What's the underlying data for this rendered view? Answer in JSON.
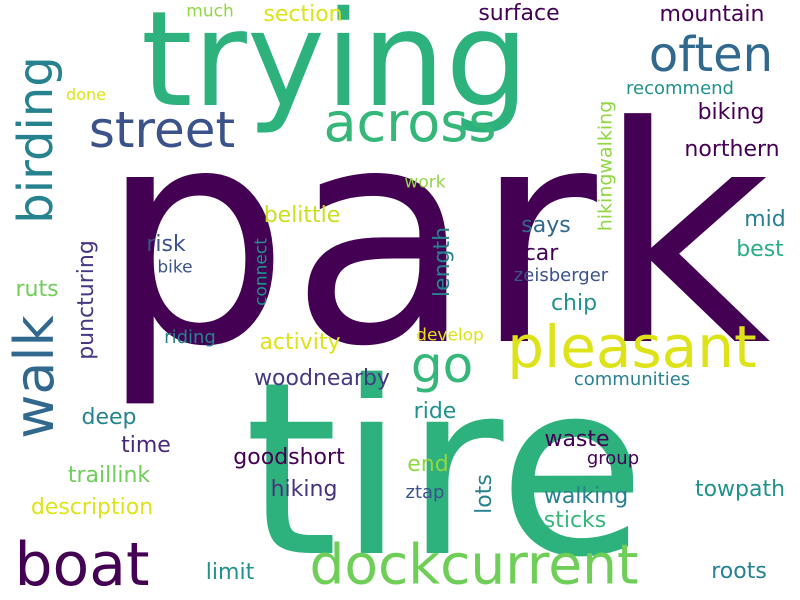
{
  "words": [
    {
      "id": "park",
      "text": "park",
      "color": "#440154"
    },
    {
      "id": "tire",
      "text": "tire",
      "color": "#2db27d"
    },
    {
      "id": "trying",
      "text": "trying",
      "color": "#2db27d"
    },
    {
      "id": "often",
      "text": "often",
      "color": "#31688e"
    },
    {
      "id": "street",
      "text": "street",
      "color": "#3b528b"
    },
    {
      "id": "across",
      "text": "across",
      "color": "#35b779"
    },
    {
      "id": "birding",
      "text": "birding",
      "color": "#26828e"
    },
    {
      "id": "pleasant",
      "text": "pleasant",
      "color": "#dde318"
    },
    {
      "id": "walk",
      "text": "walk",
      "color": "#31688e"
    },
    {
      "id": "go",
      "text": "go",
      "color": "#35b779"
    },
    {
      "id": "boat",
      "text": "boat",
      "color": "#440154"
    },
    {
      "id": "dockcurrent",
      "text": "dockcurrent",
      "color": "#6ece58"
    },
    {
      "id": "section",
      "text": "section",
      "color": "#dde318"
    },
    {
      "id": "much",
      "text": "much",
      "color": "#90d743"
    },
    {
      "id": "surface",
      "text": "surface",
      "color": "#440154"
    },
    {
      "id": "mountain",
      "text": "mountain",
      "color": "#440154"
    },
    {
      "id": "hikingwalking",
      "text": "hikingwalking",
      "color": "#90d743"
    },
    {
      "id": "recommend",
      "text": "recommend",
      "color": "#21918c"
    },
    {
      "id": "done",
      "text": "done",
      "color": "#dde318"
    },
    {
      "id": "biking",
      "text": "biking",
      "color": "#440154"
    },
    {
      "id": "northern",
      "text": "northern",
      "color": "#440154"
    },
    {
      "id": "work",
      "text": "work",
      "color": "#90d743"
    },
    {
      "id": "belittle",
      "text": "belittle",
      "color": "#dde318"
    },
    {
      "id": "mid",
      "text": "mid",
      "color": "#26828e"
    },
    {
      "id": "best",
      "text": "best",
      "color": "#29af7f"
    },
    {
      "id": "says",
      "text": "says",
      "color": "#31688e"
    },
    {
      "id": "car",
      "text": "car",
      "color": "#440154"
    },
    {
      "id": "risk",
      "text": "risk",
      "color": "#3b528b"
    },
    {
      "id": "bike",
      "text": "bike",
      "color": "#3b528b"
    },
    {
      "id": "connect",
      "text": "connect",
      "color": "#21918c"
    },
    {
      "id": "length",
      "text": "length",
      "color": "#26828e"
    },
    {
      "id": "zeisberger",
      "text": "zeisberger",
      "color": "#3b528b"
    },
    {
      "id": "ruts",
      "text": "ruts",
      "color": "#6ece58"
    },
    {
      "id": "puncturing",
      "text": "puncturing",
      "color": "#443983"
    },
    {
      "id": "chip",
      "text": "chip",
      "color": "#21918c"
    },
    {
      "id": "riding",
      "text": "riding",
      "color": "#26828e"
    },
    {
      "id": "activity",
      "text": "activity",
      "color": "#dde318"
    },
    {
      "id": "develop",
      "text": "develop",
      "color": "#dde318"
    },
    {
      "id": "woodnearby",
      "text": "woodnearby",
      "color": "#443983"
    },
    {
      "id": "communities",
      "text": "communities",
      "color": "#26828e"
    },
    {
      "id": "deep",
      "text": "deep",
      "color": "#26828e"
    },
    {
      "id": "ride",
      "text": "ride",
      "color": "#21918c"
    },
    {
      "id": "time",
      "text": "time",
      "color": "#482878"
    },
    {
      "id": "waste",
      "text": "waste",
      "color": "#440154"
    },
    {
      "id": "group",
      "text": "group",
      "color": "#440154"
    },
    {
      "id": "goodshort",
      "text": "goodshort",
      "color": "#440154"
    },
    {
      "id": "traillink",
      "text": "traillink",
      "color": "#6ece58"
    },
    {
      "id": "end",
      "text": "end",
      "color": "#90d743"
    },
    {
      "id": "lots",
      "text": "lots",
      "color": "#26828e"
    },
    {
      "id": "hiking",
      "text": "hiking",
      "color": "#46327e"
    },
    {
      "id": "walking",
      "text": "walking",
      "color": "#26828e"
    },
    {
      "id": "towpath",
      "text": "towpath",
      "color": "#21918c"
    },
    {
      "id": "ztap",
      "text": "ztap",
      "color": "#3b528b"
    },
    {
      "id": "description",
      "text": "description",
      "color": "#dde318"
    },
    {
      "id": "sticks",
      "text": "sticks",
      "color": "#35b779"
    },
    {
      "id": "limit",
      "text": "limit",
      "color": "#21918c"
    },
    {
      "id": "roots",
      "text": "roots",
      "color": "#26828e"
    }
  ]
}
